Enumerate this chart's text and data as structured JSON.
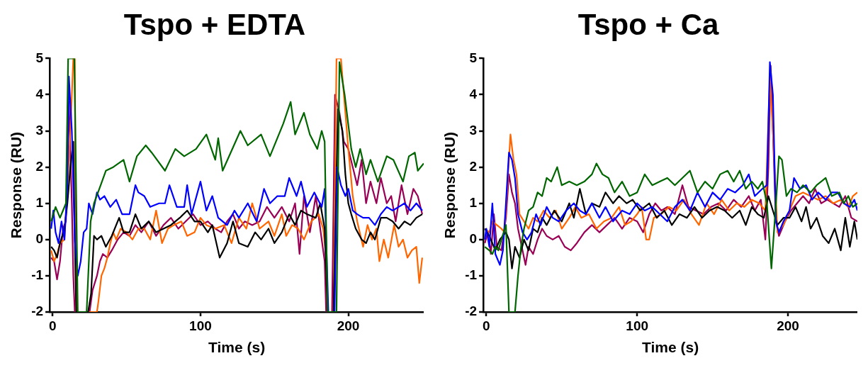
{
  "chart_data": [
    {
      "type": "line",
      "title": "Tspo + EDTA",
      "xlabel": "Time (s)",
      "ylabel": "Response (RU)",
      "xlim": [
        -2,
        251
      ],
      "xticks": [
        0,
        100,
        200
      ],
      "ylim": [
        -2,
        5
      ],
      "yticks": [
        -2,
        -1,
        0,
        1,
        2,
        3,
        4,
        5
      ],
      "grid": false,
      "legend": false,
      "marker": "none",
      "line_style": "solid",
      "series": [
        {
          "color": "#006600",
          "x": [
            -1,
            2,
            5,
            7,
            9,
            10.5,
            14.7,
            17,
            23,
            25.7,
            28,
            32.5,
            36,
            41,
            48,
            52,
            57,
            63,
            67,
            76,
            83,
            89,
            97,
            104,
            110,
            112,
            115,
            127,
            132,
            141,
            147,
            156,
            161,
            164,
            170,
            174,
            179,
            182,
            184,
            186,
            192,
            194,
            197.5,
            202,
            205,
            208,
            212,
            215,
            220,
            226,
            230.5,
            237,
            241,
            245,
            247,
            251
          ],
          "values": [
            0.5,
            0.9,
            0.6,
            0.8,
            1.0,
            5,
            5,
            -2,
            -2,
            0.5,
            1.0,
            1.5,
            1.9,
            2.0,
            2.2,
            1.6,
            2.3,
            2.6,
            2.4,
            1.9,
            2.5,
            2.3,
            2.5,
            2.9,
            2.2,
            2.8,
            1.9,
            3.0,
            2.6,
            2.9,
            2.3,
            3.2,
            3.8,
            2.9,
            3.5,
            2.9,
            2.5,
            3.0,
            2.7,
            -2,
            -2,
            4.9,
            4.0,
            2.5,
            2.0,
            2.5,
            1.8,
            2.2,
            1.6,
            2.3,
            2.2,
            1.6,
            2.3,
            2.4,
            1.9,
            2.1
          ]
        },
        {
          "color": "#0000ff",
          "x": [
            -1,
            0.5,
            2,
            4,
            6,
            8,
            10,
            11,
            13,
            15,
            17,
            19,
            21,
            23,
            24.5,
            27,
            30,
            32,
            35,
            39,
            43,
            47,
            52,
            56,
            58,
            62,
            66,
            72,
            76,
            79,
            84,
            89,
            91,
            94,
            100,
            104,
            108,
            112,
            118,
            123,
            126,
            132,
            138,
            143,
            147,
            152,
            157,
            160,
            165,
            168,
            172,
            177,
            182,
            184,
            186.5,
            190.7,
            192.4,
            195,
            198,
            200,
            203,
            206,
            210,
            214,
            218,
            222,
            226,
            230,
            234,
            238,
            242,
            246,
            250
          ],
          "values": [
            0.3,
            0.8,
            0.2,
            -0.1,
            0.5,
            0.0,
            1.5,
            4.5,
            3.0,
            0.0,
            -1.0,
            -0.6,
            0.2,
            0.3,
            1.0,
            0.7,
            1.3,
            1.1,
            1.2,
            0.9,
            1.1,
            0.7,
            0.7,
            1.5,
            1.3,
            1.2,
            0.9,
            1.0,
            1.0,
            1.5,
            0.9,
            0.9,
            1.5,
            0.7,
            1.6,
            0.8,
            1.2,
            0.6,
            0.4,
            0.8,
            0.6,
            1.0,
            0.5,
            1.4,
            1.0,
            1.2,
            1.2,
            1.7,
            1.2,
            1.6,
            0.9,
            1.3,
            0.9,
            1.4,
            -2,
            -2,
            2.0,
            1.5,
            1.2,
            1.4,
            0.8,
            0.7,
            0.6,
            0.6,
            0.4,
            0.7,
            0.9,
            0.8,
            0.9,
            1.0,
            0.8,
            1.0,
            0.8
          ]
        },
        {
          "color": "#000000",
          "x": [
            -1,
            1,
            3,
            5,
            8,
            10,
            12,
            14,
            15,
            16,
            24,
            26,
            28,
            30,
            33,
            36,
            40,
            45,
            48,
            52,
            56,
            60,
            65,
            70,
            75,
            80,
            86,
            91,
            96,
            100,
            105,
            108,
            113,
            118,
            122,
            126,
            132,
            137,
            141,
            146,
            150,
            155,
            160,
            164,
            168,
            172,
            178,
            181,
            184,
            186,
            190,
            193,
            196,
            198,
            200,
            202,
            205,
            209,
            212,
            215,
            218,
            222,
            226,
            230,
            234,
            238,
            242,
            246,
            250
          ],
          "values": [
            -0.2,
            -0.3,
            -0.5,
            -0.1,
            0.3,
            1.0,
            2.0,
            2.7,
            0,
            -2,
            -2,
            -1.5,
            0.1,
            0.0,
            0.1,
            -0.2,
            0.1,
            0.6,
            0.2,
            0.2,
            0.7,
            0.3,
            0.5,
            0.2,
            0.3,
            0.4,
            0.6,
            0.8,
            0.5,
            0.5,
            0.2,
            0.4,
            -0.5,
            -0.1,
            0.5,
            -0.1,
            -0.2,
            0.2,
            0.0,
            0.3,
            -0.1,
            0.2,
            0.7,
            0.4,
            0.8,
            0.7,
            0.6,
            1.0,
            0.3,
            -2,
            -2,
            3.6,
            3.0,
            1.8,
            1.0,
            0.7,
            0.3,
            0.0,
            -0.1,
            0.2,
            0.0,
            0.6,
            0.6,
            0.5,
            0.3,
            0.5,
            0.4,
            0.6,
            0.7
          ]
        },
        {
          "color": "#ff6600",
          "x": [
            -1,
            1,
            3,
            5,
            8,
            10,
            12,
            14,
            15,
            16,
            30,
            31,
            33,
            35,
            37,
            39,
            41,
            43,
            46,
            50,
            54,
            58,
            62,
            66,
            70,
            74,
            78,
            82,
            87,
            91,
            96,
            100,
            104,
            110,
            116,
            121,
            126,
            131,
            135,
            140,
            146,
            150,
            155,
            158,
            162,
            166,
            170,
            175,
            180,
            183,
            185,
            186,
            190,
            192,
            195,
            198,
            200,
            203,
            206,
            210,
            213,
            216,
            219,
            221,
            224,
            227,
            231,
            234,
            237,
            240,
            243,
            246,
            248,
            250
          ],
          "values": [
            -0.3,
            -0.6,
            -0.4,
            -0.1,
            0.0,
            1.5,
            3.0,
            5,
            5,
            -2,
            -2,
            -1.7,
            -1.0,
            -0.8,
            -0.5,
            -0.1,
            0.2,
            0.0,
            0.3,
            0.2,
            0.0,
            0.3,
            0.3,
            0.0,
            0.8,
            -0.1,
            0.3,
            0.4,
            0.5,
            0.1,
            0.2,
            0.6,
            0.4,
            0.3,
            0.4,
            -0.1,
            0.6,
            0.3,
            1.0,
            0.3,
            0.5,
            0.1,
            0.7,
            0.1,
            0.4,
            0.3,
            0.0,
            0.5,
            0.7,
            0.3,
            -0.5,
            -2,
            -2,
            5,
            5,
            3.5,
            2.5,
            1.2,
            0.5,
            -0.2,
            0.4,
            0.0,
            0.3,
            -0.6,
            0.0,
            -0.5,
            0.4,
            -0.2,
            0.0,
            -0.5,
            -0.3,
            -0.2,
            -1.2,
            -0.5
          ]
        },
        {
          "color": "#990055",
          "x": [
            -1,
            1,
            3,
            5,
            7,
            9,
            11,
            13,
            14,
            15,
            25,
            27,
            30,
            32,
            34,
            37,
            40,
            44,
            48,
            52,
            56,
            60,
            65,
            70,
            75,
            80,
            85,
            90,
            95,
            100,
            105,
            110,
            114,
            118,
            122,
            126,
            130,
            135,
            140,
            145,
            150,
            155,
            160,
            164,
            167,
            170,
            174,
            178,
            182,
            184,
            185,
            189,
            191,
            194,
            197,
            200,
            203,
            206,
            209,
            212,
            215,
            219,
            222,
            226,
            229,
            232,
            236,
            240,
            244,
            247,
            250
          ],
          "values": [
            -0.5,
            -0.6,
            -1.1,
            -0.6,
            0.3,
            0.5,
            3.8,
            1.0,
            -1,
            -2,
            -2,
            -1.4,
            -1.0,
            -0.6,
            -0.4,
            -0.5,
            -0.3,
            0.0,
            0.2,
            0.1,
            0.4,
            0.2,
            0.5,
            0.1,
            0.4,
            0.6,
            0.3,
            0.5,
            0.7,
            0.4,
            0.5,
            0.3,
            0.2,
            0.5,
            0.7,
            0.3,
            0.5,
            0.4,
            0.5,
            0.9,
            0.6,
            0.9,
            0.5,
            1.0,
            -0.4,
            1.2,
            0.2,
            1.2,
            0.0,
            -0.6,
            -2,
            -2,
            4.0,
            3.5,
            2.7,
            2.5,
            2.0,
            1.5,
            2.2,
            1.0,
            1.6,
            1.0,
            1.7,
            1.0,
            1.2,
            0.5,
            1.5,
            0.7,
            1.4,
            1.2,
            0.7
          ]
        }
      ]
    },
    {
      "type": "line",
      "title": "Tspo + Ca",
      "xlabel": "Time (s)",
      "ylabel": "Response (RU)",
      "xlim": [
        -2,
        246
      ],
      "xticks": [
        0,
        100,
        200
      ],
      "ylim": [
        -2,
        5
      ],
      "yticks": [
        -2,
        -1,
        0,
        1,
        2,
        3,
        4,
        5
      ],
      "grid": false,
      "legend": false,
      "marker": "none",
      "line_style": "solid",
      "series": [
        {
          "color": "#006600",
          "x": [
            -1,
            2,
            4,
            6,
            8,
            10,
            13,
            15,
            19,
            21,
            23,
            25,
            28,
            31,
            34,
            37,
            40,
            43,
            47,
            50,
            55,
            60,
            65,
            70,
            73,
            77,
            81,
            85,
            90,
            95,
            100,
            105,
            110,
            115,
            120,
            125,
            130,
            135,
            140,
            145,
            150,
            155,
            160,
            164,
            168,
            172,
            176,
            180,
            183,
            186,
            189,
            192,
            194,
            196,
            199,
            202,
            206,
            210,
            215,
            219,
            225,
            229,
            234,
            237,
            240,
            243,
            246
          ],
          "values": [
            -0.2,
            -0.3,
            -0.4,
            -0.2,
            -0.3,
            0.0,
            0.4,
            -2,
            -2,
            -1.0,
            -0.2,
            0.3,
            0.8,
            0.9,
            1.3,
            1.2,
            1.7,
            1.6,
            2.0,
            1.5,
            1.6,
            1.5,
            1.6,
            1.8,
            2.1,
            1.8,
            1.7,
            1.3,
            1.6,
            1.2,
            1.3,
            1.8,
            1.5,
            1.6,
            1.7,
            1.5,
            1.7,
            1.9,
            1.3,
            1.6,
            1.4,
            1.8,
            1.9,
            1.6,
            1.9,
            1.4,
            1.6,
            1.4,
            1.6,
            1.0,
            -0.8,
            1.0,
            2.3,
            2.2,
            1.2,
            1.4,
            1.3,
            1.5,
            1.3,
            1.5,
            1.7,
            1.2,
            1.3,
            1.0,
            1.2,
            0.9,
            1.0
          ]
        },
        {
          "color": "#0000ff",
          "x": [
            -1,
            0,
            2,
            4,
            6,
            9,
            11,
            13,
            15,
            17,
            19,
            21,
            24,
            27,
            30,
            33,
            36,
            40,
            44,
            48,
            53,
            58,
            62,
            66,
            70,
            75,
            79,
            84,
            90,
            95,
            100,
            105,
            110,
            115,
            120,
            125,
            130,
            135,
            140,
            145,
            150,
            155,
            160,
            165,
            170,
            174,
            178,
            183,
            186,
            188,
            190,
            192,
            194,
            197,
            201,
            204,
            208,
            212,
            216,
            220,
            225,
            229,
            233,
            237,
            241,
            244,
            246
          ],
          "values": [
            0.0,
            0.3,
            -0.2,
            1.0,
            -0.4,
            -0.7,
            -0.3,
            1.0,
            2.4,
            2.2,
            1.7,
            0.7,
            0.2,
            0.0,
            0.2,
            0.7,
            0.4,
            0.9,
            0.6,
            0.5,
            0.8,
            1.0,
            0.8,
            0.7,
            1.0,
            0.6,
            0.9,
            0.5,
            0.8,
            0.7,
            1.0,
            0.8,
            0.9,
            0.7,
            0.5,
            0.9,
            1.1,
            0.8,
            1.3,
            0.9,
            1.3,
            1.1,
            1.4,
            1.3,
            1.5,
            1.8,
            1.2,
            1.4,
            1.5,
            4.9,
            4.0,
            0.5,
            0.2,
            0.5,
            0.8,
            1.7,
            1.4,
            1.5,
            1.1,
            1.3,
            1.1,
            1.3,
            1.3,
            1.0,
            0.9,
            1.1,
            0.8
          ]
        },
        {
          "color": "#000000",
          "x": [
            -1,
            2,
            4,
            6,
            9,
            11,
            13,
            15,
            17,
            19,
            22,
            25,
            28,
            31,
            34,
            37,
            40,
            45,
            50,
            55,
            58,
            62,
            66,
            70,
            75,
            79,
            84,
            88,
            93,
            97,
            102,
            108,
            113,
            118,
            123,
            128,
            133,
            138,
            143,
            148,
            153,
            158,
            163,
            168,
            172,
            176,
            180,
            184,
            187,
            190,
            193,
            197,
            201,
            205,
            209,
            212,
            215,
            219,
            223,
            227,
            231,
            235,
            238,
            241,
            244,
            246
          ],
          "values": [
            0.3,
            0.1,
            -0.1,
            -0.3,
            0.0,
            0.1,
            0.2,
            0.0,
            -0.8,
            -0.2,
            -0.5,
            0.0,
            -0.3,
            0.3,
            0.2,
            0.6,
            0.4,
            0.8,
            0.5,
            1.0,
            0.6,
            1.4,
            0.7,
            1.0,
            0.9,
            1.3,
            1.0,
            1.2,
            1.0,
            1.1,
            0.8,
            1.0,
            0.6,
            0.8,
            0.4,
            0.7,
            0.6,
            0.9,
            0.6,
            0.8,
            0.9,
            0.8,
            0.6,
            0.8,
            0.4,
            0.9,
            0.7,
            0.6,
            1.2,
            0.8,
            0.4,
            0.6,
            0.6,
            0.9,
            0.5,
            0.9,
            0.3,
            0.6,
            0.1,
            -0.1,
            0.3,
            -0.3,
            0.6,
            -0.2,
            0.5,
            0.0
          ]
        },
        {
          "color": "#ff6600",
          "x": [
            -1,
            2,
            4,
            7,
            10,
            12,
            14,
            16,
            18,
            20,
            22,
            25,
            28,
            31,
            34,
            38,
            42,
            46,
            50,
            55,
            59,
            63,
            68,
            73,
            78,
            83,
            88,
            92,
            96,
            100,
            103,
            106,
            108,
            111,
            116,
            121,
            126,
            131,
            136,
            141,
            146,
            151,
            156,
            161,
            166,
            171,
            176,
            181,
            185,
            188,
            190,
            193,
            197,
            201,
            205,
            210,
            215,
            220,
            225,
            230,
            235,
            240,
            243,
            246
          ],
          "values": [
            0.3,
            0.2,
            0.5,
            0.4,
            0.3,
            0.2,
            1.5,
            2.9,
            2.2,
            1.8,
            0.7,
            0.5,
            0.3,
            0.6,
            0.5,
            0.8,
            0.6,
            0.8,
            0.3,
            0.6,
            0.9,
            0.6,
            0.7,
            0.3,
            0.5,
            0.6,
            0.9,
            0.4,
            0.5,
            0.7,
            0.9,
            0.0,
            0.0,
            0.6,
            0.7,
            0.9,
            0.8,
            1.1,
            0.7,
            0.4,
            1.0,
            0.7,
            1.1,
            0.8,
            1.0,
            0.9,
            1.1,
            1.0,
            0.8,
            4.5,
            3.0,
            0.2,
            0.4,
            0.8,
            1.2,
            1.3,
            1.2,
            1.1,
            1.2,
            1.0,
            1.1,
            0.9,
            1.2,
            1.3
          ]
        },
        {
          "color": "#990055",
          "x": [
            -1,
            1,
            3,
            5,
            7,
            10,
            13,
            15,
            17,
            19,
            21,
            24,
            26,
            28,
            31,
            34,
            37,
            40,
            44,
            48,
            52,
            56,
            60,
            65,
            70,
            75,
            80,
            85,
            90,
            95,
            100,
            104,
            108,
            112,
            116,
            120,
            125,
            130,
            134,
            139,
            144,
            149,
            154,
            159,
            164,
            169,
            174,
            178,
            182,
            185,
            187,
            188.5,
            190,
            192,
            194,
            198,
            202,
            206,
            210,
            214,
            218,
            222,
            226,
            230,
            234,
            238,
            242,
            246
          ],
          "values": [
            -0.1,
            0.2,
            -0.4,
            0.7,
            -0.2,
            -0.3,
            0.6,
            1.8,
            1.3,
            1.0,
            0.3,
            -0.3,
            -0.7,
            -0.2,
            -0.4,
            0.0,
            0.3,
            0.1,
            0.0,
            0.1,
            -0.2,
            -0.3,
            -0.1,
            0.2,
            0.4,
            0.2,
            0.4,
            0.6,
            0.3,
            0.6,
            0.5,
            0.2,
            0.7,
            1.0,
            0.8,
            0.9,
            0.7,
            1.5,
            0.9,
            0.8,
            0.7,
            0.9,
            1.0,
            0.8,
            1.1,
            0.9,
            1.2,
            0.8,
            1.1,
            0.0,
            2.0,
            4.8,
            3.0,
            0.5,
            0.1,
            0.5,
            0.8,
            1.0,
            1.2,
            1.0,
            1.4,
            1.0,
            1.1,
            1.0,
            0.9,
            1.2,
            0.6,
            0.5
          ]
        }
      ]
    }
  ]
}
